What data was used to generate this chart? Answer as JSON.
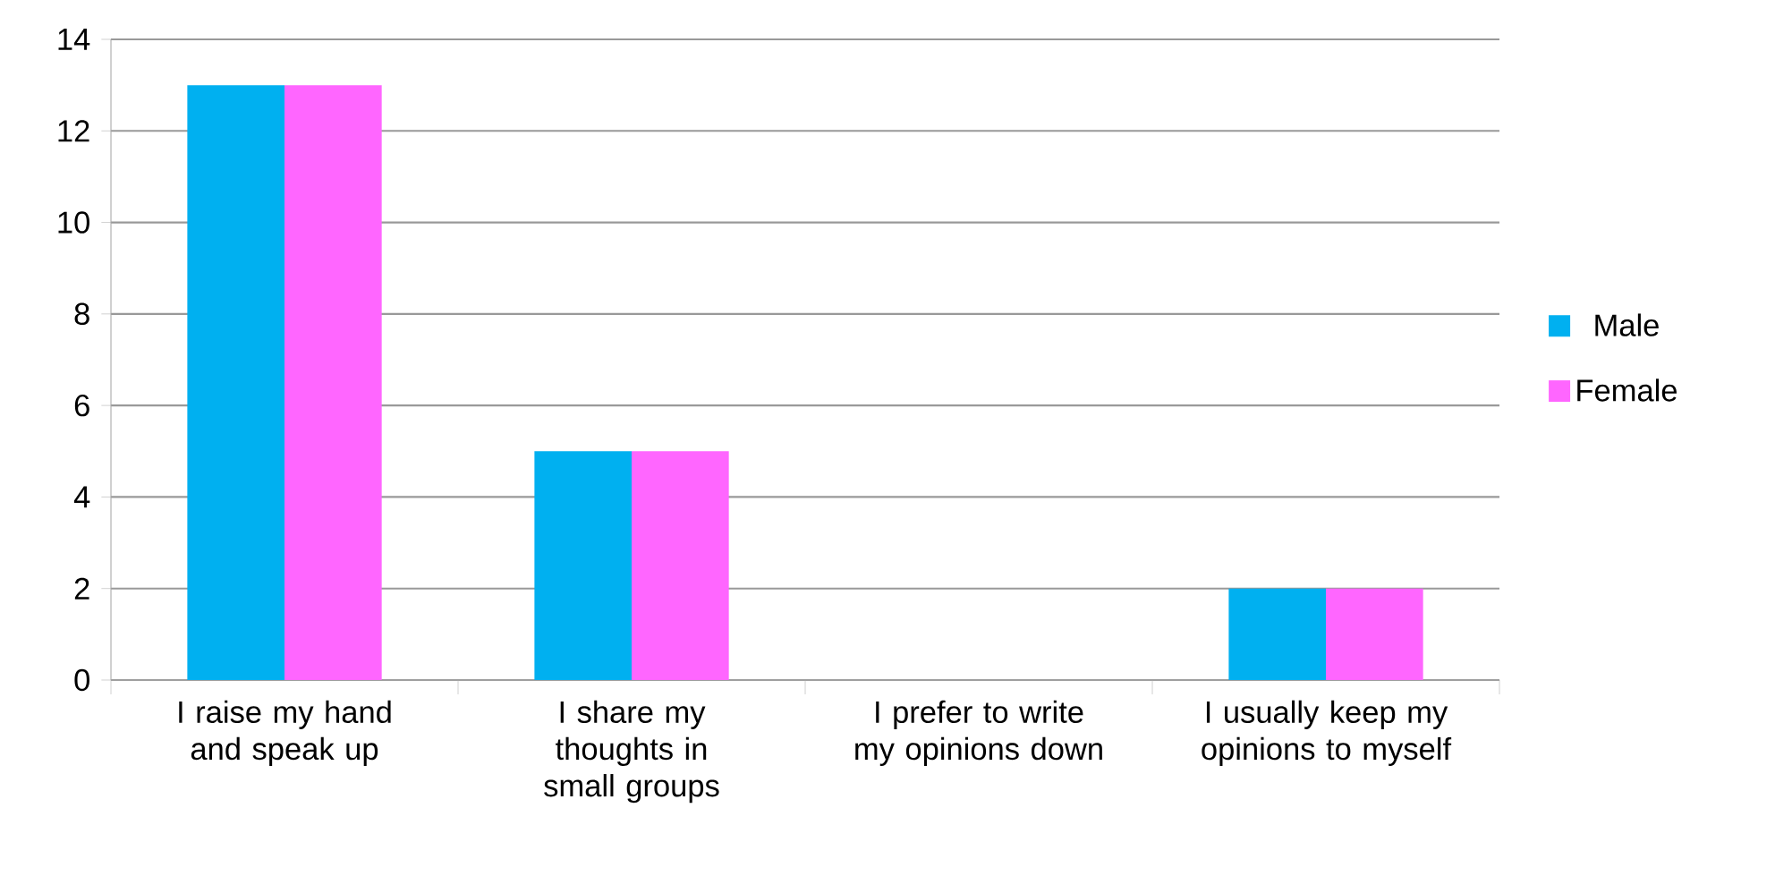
{
  "chart_data": {
    "type": "bar",
    "categories": [
      "I raise my hand and speak up",
      "I share my thoughts in small groups",
      "I prefer to write my opinions down",
      "I usually keep my opinions to myself"
    ],
    "series": [
      {
        "name": "Male",
        "color": "#00b0f0",
        "values": [
          13,
          5,
          0,
          2
        ]
      },
      {
        "name": "Female",
        "color": "#ff66ff",
        "values": [
          13,
          5,
          0,
          2
        ]
      }
    ],
    "ylim": [
      0,
      14
    ],
    "yticks": [
      0,
      2,
      4,
      6,
      8,
      10,
      12,
      14
    ],
    "grid": "y",
    "legend": "right"
  }
}
